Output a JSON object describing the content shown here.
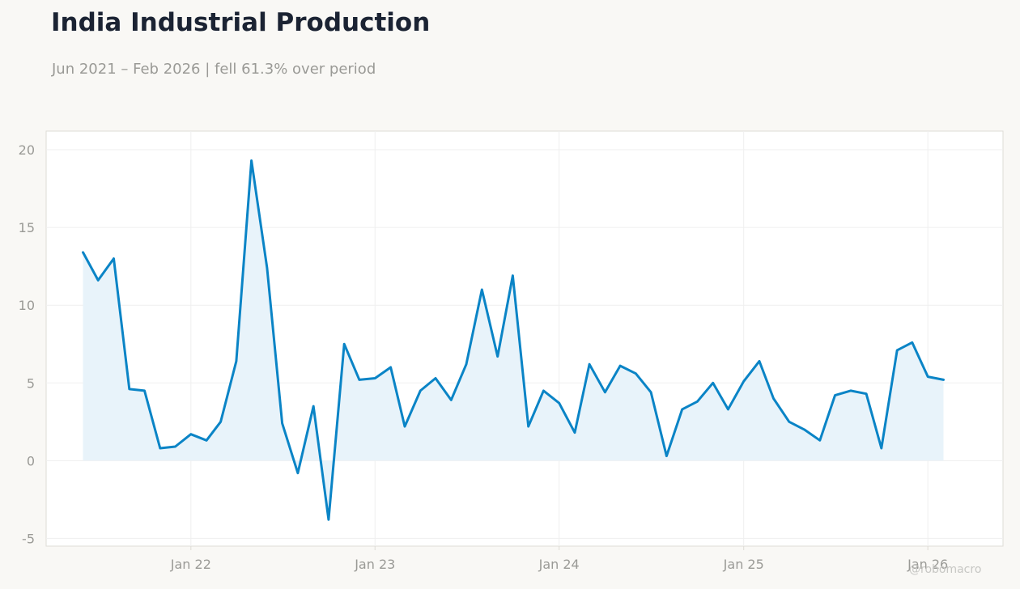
{
  "title": "India Industrial Production",
  "subtitle": "Jun 2021 – Feb 2026 | fell 61.3% over period",
  "watermark": "@robomacro",
  "colors": {
    "line": "#0a84c6",
    "fill": "#e8f3fa",
    "grid": "#efefef",
    "frame": "#dedcd6",
    "text": "#9a9a96",
    "title": "#1b2333",
    "background": "#f9f8f5",
    "plot_background": "#ffffff"
  },
  "chart_data": {
    "type": "area",
    "title": "India Industrial Production",
    "subtitle": "Jun 2021 – Feb 2026 | fell 61.3% over period",
    "xlabel": "",
    "ylabel": "",
    "ylim": [
      -5.5,
      21.2
    ],
    "xlim": [
      "2021-03-20",
      "2026-05-30"
    ],
    "grid": true,
    "legend": "none",
    "yticks": [
      -5,
      0,
      5,
      10,
      15,
      20
    ],
    "xticks": [
      {
        "date": "2022-01-01",
        "label": "Jan 22"
      },
      {
        "date": "2023-01-01",
        "label": "Jan 23"
      },
      {
        "date": "2024-01-01",
        "label": "Jan 24"
      },
      {
        "date": "2025-01-01",
        "label": "Jan 25"
      },
      {
        "date": "2026-01-01",
        "label": "Jan 26"
      }
    ],
    "x": [
      "2021-06",
      "2021-07",
      "2021-08",
      "2021-09",
      "2021-10",
      "2021-11",
      "2021-12",
      "2022-01",
      "2022-02",
      "2022-03",
      "2022-04",
      "2022-05",
      "2022-06",
      "2022-07",
      "2022-08",
      "2022-09",
      "2022-10",
      "2022-11",
      "2022-12",
      "2023-01",
      "2023-02",
      "2023-03",
      "2023-04",
      "2023-05",
      "2023-06",
      "2023-07",
      "2023-08",
      "2023-09",
      "2023-10",
      "2023-11",
      "2023-12",
      "2024-01",
      "2024-02",
      "2024-03",
      "2024-04",
      "2024-05",
      "2024-06",
      "2024-07",
      "2024-08",
      "2024-09",
      "2024-10",
      "2024-11",
      "2024-12",
      "2025-01",
      "2025-02",
      "2025-03",
      "2025-04",
      "2025-05",
      "2025-06",
      "2025-07",
      "2025-08",
      "2025-09",
      "2025-10",
      "2025-11",
      "2025-12",
      "2026-01",
      "2026-02"
    ],
    "values": [
      13.4,
      11.6,
      13.0,
      4.6,
      4.5,
      0.8,
      0.9,
      1.7,
      1.3,
      2.5,
      6.4,
      19.3,
      12.4,
      2.4,
      -0.8,
      3.5,
      -3.8,
      7.5,
      5.2,
      5.3,
      6.0,
      2.2,
      4.5,
      5.3,
      3.9,
      6.2,
      11.0,
      6.7,
      11.9,
      2.2,
      4.5,
      3.7,
      1.8,
      6.2,
      4.4,
      6.1,
      5.6,
      4.4,
      0.3,
      3.3,
      3.8,
      5.0,
      3.3,
      5.1,
      6.4,
      4.0,
      2.5,
      2.0,
      1.3,
      4.2,
      4.5,
      4.3,
      0.8,
      7.1,
      7.6,
      5.4,
      5.2
    ]
  }
}
